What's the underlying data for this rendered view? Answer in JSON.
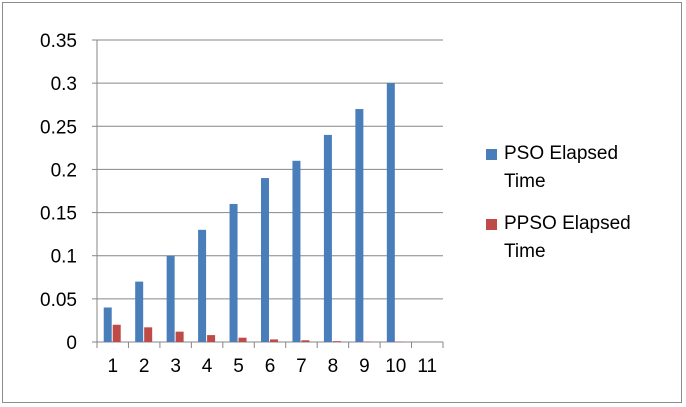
{
  "chart_data": {
    "type": "bar",
    "categories": [
      "1",
      "2",
      "3",
      "4",
      "5",
      "6",
      "7",
      "8",
      "9",
      "10",
      "11"
    ],
    "series": [
      {
        "name": "PSO Elapsed Time",
        "color": "#4a7ebb",
        "values": [
          0.04,
          0.07,
          0.1,
          0.13,
          0.16,
          0.19,
          0.21,
          0.24,
          0.27,
          0.3,
          null
        ]
      },
      {
        "name": "PPSO Elapsed Time",
        "color": "#be4b48",
        "values": [
          0.02,
          0.017,
          0.012,
          0.008,
          0.005,
          0.003,
          0.002,
          0.001,
          0.0005,
          0.0003,
          null
        ]
      }
    ],
    "yticks": [
      "0",
      "0.05",
      "0.1",
      "0.15",
      "0.2",
      "0.25",
      "0.3",
      "0.35"
    ],
    "ylim": [
      0,
      0.35
    ],
    "grid": true,
    "legend_position": "right"
  }
}
